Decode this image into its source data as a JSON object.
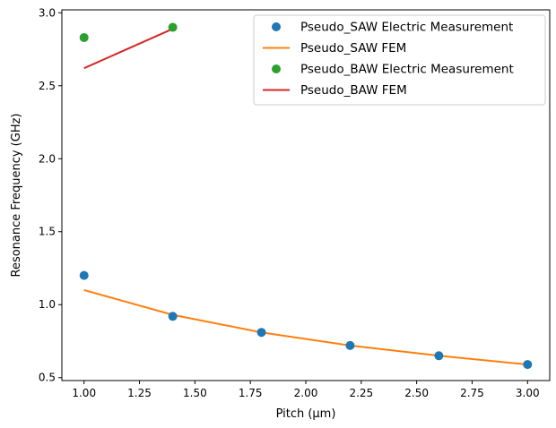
{
  "chart_data": {
    "type": "scatter",
    "title": "",
    "xlabel": "Pitch (µm)",
    "ylabel": "Resonance Frequency (GHz)",
    "xlim": [
      0.9,
      3.1
    ],
    "ylim": [
      0.48,
      3.02
    ],
    "xticks": [
      1.0,
      1.25,
      1.5,
      1.75,
      2.0,
      2.25,
      2.5,
      2.75,
      3.0
    ],
    "xtick_labels": [
      "1.00",
      "1.25",
      "1.50",
      "1.75",
      "2.00",
      "2.25",
      "2.50",
      "2.75",
      "3.00"
    ],
    "yticks": [
      0.5,
      1.0,
      1.5,
      2.0,
      2.5,
      3.0
    ],
    "ytick_labels": [
      "0.5",
      "1.0",
      "1.5",
      "2.0",
      "2.5",
      "3.0"
    ],
    "grid": false,
    "legend_position": "top-right",
    "series": [
      {
        "name": "Pseudo_SAW Electric Measurement",
        "kind": "scatter",
        "color": "#1f77b4",
        "x": [
          1.0,
          1.4,
          1.8,
          2.2,
          2.6,
          3.0
        ],
        "y": [
          1.2,
          0.92,
          0.81,
          0.72,
          0.65,
          0.59
        ]
      },
      {
        "name": "Pseudo_SAW FEM",
        "kind": "line",
        "color": "#ff7f0e",
        "x": [
          1.0,
          1.4,
          1.8,
          2.2,
          2.6,
          3.0
        ],
        "y": [
          1.1,
          0.93,
          0.81,
          0.72,
          0.65,
          0.59
        ]
      },
      {
        "name": "Pseudo_BAW Electric Measurement",
        "kind": "scatter",
        "color": "#2ca02c",
        "x": [
          1.0,
          1.4
        ],
        "y": [
          2.83,
          2.9
        ]
      },
      {
        "name": "Pseudo_BAW FEM",
        "kind": "line",
        "color": "#d62728",
        "x": [
          1.0,
          1.4
        ],
        "y": [
          2.62,
          2.89
        ]
      }
    ]
  }
}
